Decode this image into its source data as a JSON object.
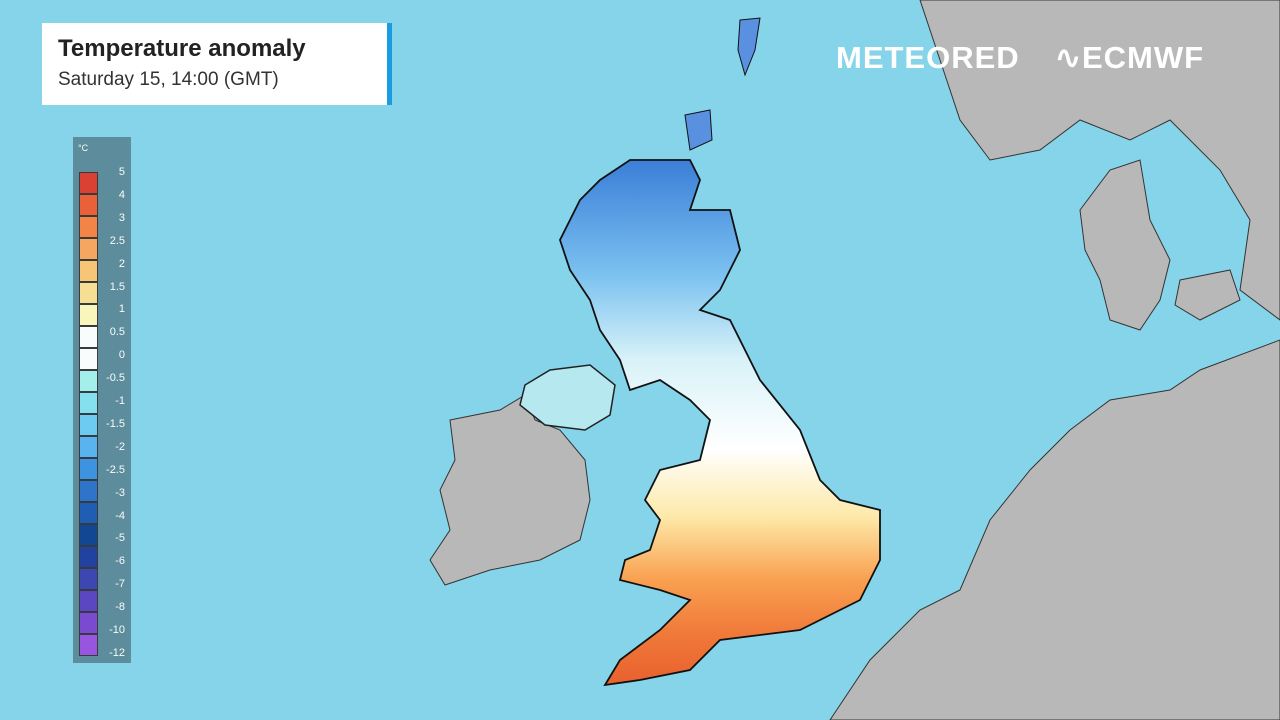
{
  "header": {
    "title": "Temperature anomaly",
    "subtitle": "Saturday 15, 14:00 (GMT)"
  },
  "legend": {
    "unit": "°C",
    "labels": [
      "5",
      "4",
      "3",
      "2.5",
      "2",
      "1.5",
      "1",
      "0.5",
      "0",
      "-0.5",
      "-1",
      "-1.5",
      "-2",
      "-2.5",
      "-3",
      "-4",
      "-5",
      "-6",
      "-7",
      "-8",
      "-10",
      "-12"
    ],
    "colors": [
      "#e03a2a",
      "#f05a30",
      "#f98040",
      "#fba55a",
      "#fcc670",
      "#fde090",
      "#fff8b8",
      "#ffffff",
      "#ffffff",
      "#a6f0ec",
      "#86e0f0",
      "#6ccaf2",
      "#56b2f0",
      "#3a90e0",
      "#2a70c8",
      "#1a58b0",
      "#0c4090",
      "#1c3c9c",
      "#3a40b0",
      "#5a40c0",
      "#7a44d0",
      "#9a50e0"
    ]
  },
  "logos": {
    "meteored": "METEORED",
    "ecmwf": "ECMWF"
  },
  "colors": {
    "sea": "#86d4ea",
    "land": "#b8b8b8",
    "accent": "#1a9ce0"
  }
}
